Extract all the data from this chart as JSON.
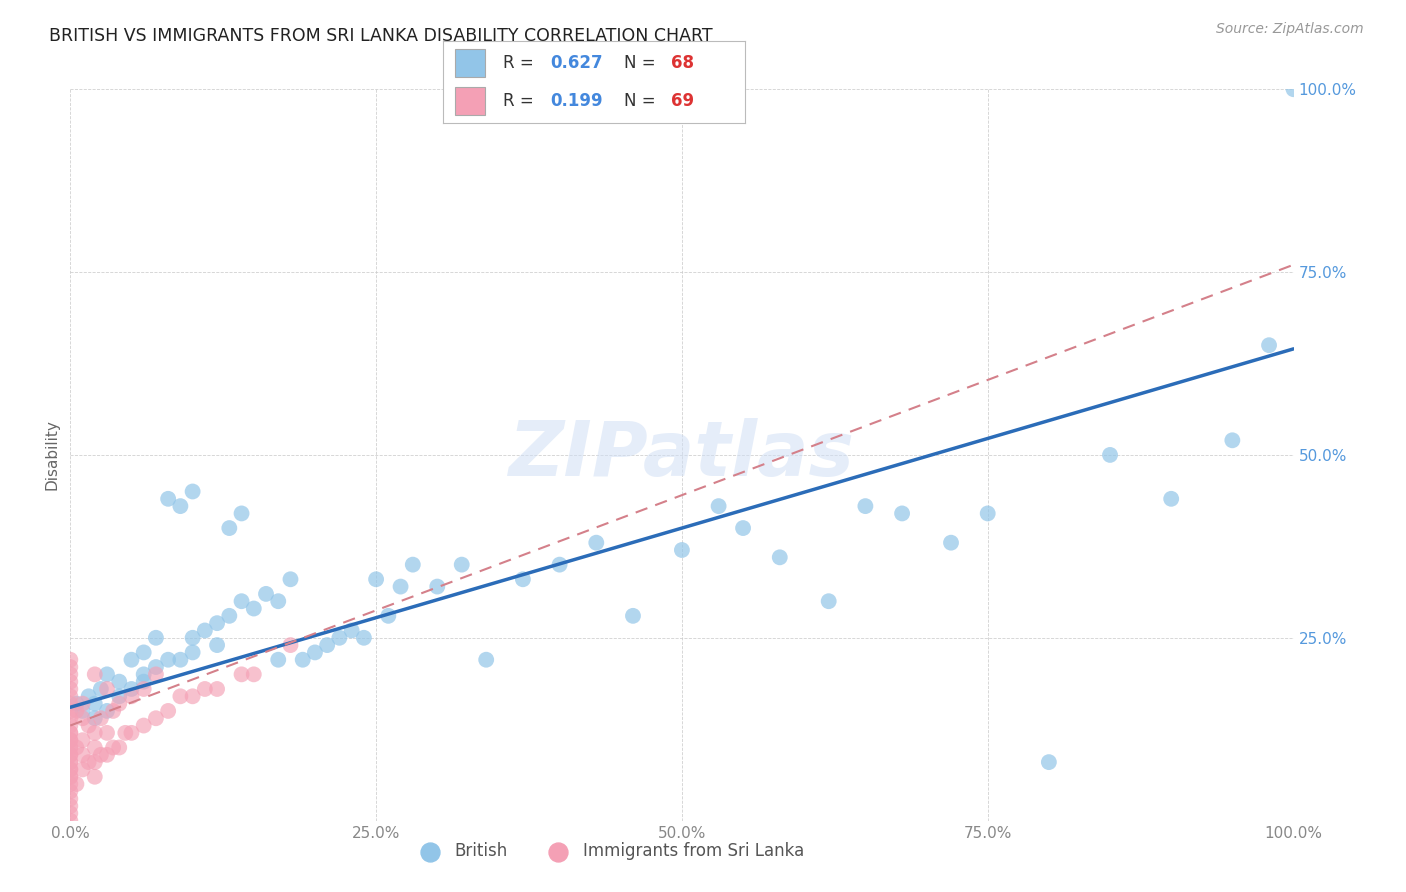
{
  "title": "BRITISH VS IMMIGRANTS FROM SRI LANKA DISABILITY CORRELATION CHART",
  "source": "Source: ZipAtlas.com",
  "ylabel": "Disability",
  "watermark": "ZIPatlas",
  "xlim": [
    0.0,
    1.0
  ],
  "ylim": [
    0.0,
    1.0
  ],
  "british_color": "#92c5e8",
  "immigrants_color": "#f4a0b5",
  "british_line_color": "#2b6cb8",
  "immigrants_line_color": "#d4808a",
  "legend_R_british": "0.627",
  "legend_N_british": "68",
  "legend_R_immigrants": "0.199",
  "legend_N_immigrants": "69",
  "ytick_color": "#5599dd",
  "xtick_color": "#888888",
  "british_x": [
    0.005,
    0.01,
    0.015,
    0.02,
    0.02,
    0.025,
    0.03,
    0.03,
    0.04,
    0.04,
    0.05,
    0.05,
    0.06,
    0.06,
    0.06,
    0.07,
    0.07,
    0.08,
    0.08,
    0.09,
    0.09,
    0.1,
    0.1,
    0.1,
    0.11,
    0.12,
    0.12,
    0.13,
    0.13,
    0.14,
    0.14,
    0.15,
    0.16,
    0.17,
    0.17,
    0.18,
    0.19,
    0.2,
    0.21,
    0.22,
    0.23,
    0.24,
    0.25,
    0.26,
    0.27,
    0.28,
    0.3,
    0.32,
    0.34,
    0.37,
    0.4,
    0.43,
    0.46,
    0.5,
    0.53,
    0.55,
    0.58,
    0.62,
    0.65,
    0.68,
    0.72,
    0.75,
    0.8,
    0.85,
    0.9,
    0.95,
    0.98,
    1.0
  ],
  "british_y": [
    0.16,
    0.15,
    0.17,
    0.16,
    0.14,
    0.18,
    0.15,
    0.2,
    0.17,
    0.19,
    0.18,
    0.22,
    0.2,
    0.19,
    0.23,
    0.21,
    0.25,
    0.22,
    0.44,
    0.43,
    0.22,
    0.23,
    0.45,
    0.25,
    0.26,
    0.24,
    0.27,
    0.28,
    0.4,
    0.42,
    0.3,
    0.29,
    0.31,
    0.3,
    0.22,
    0.33,
    0.22,
    0.23,
    0.24,
    0.25,
    0.26,
    0.25,
    0.33,
    0.28,
    0.32,
    0.35,
    0.32,
    0.35,
    0.22,
    0.33,
    0.35,
    0.38,
    0.28,
    0.37,
    0.43,
    0.4,
    0.36,
    0.3,
    0.43,
    0.42,
    0.38,
    0.42,
    0.08,
    0.5,
    0.44,
    0.52,
    0.65,
    1.0
  ],
  "immigrants_x": [
    0.0,
    0.0,
    0.0,
    0.0,
    0.0,
    0.0,
    0.0,
    0.0,
    0.0,
    0.0,
    0.0,
    0.0,
    0.0,
    0.0,
    0.0,
    0.0,
    0.0,
    0.0,
    0.0,
    0.0,
    0.0,
    0.0,
    0.0,
    0.0,
    0.0,
    0.0,
    0.0,
    0.0,
    0.0,
    0.0,
    0.005,
    0.005,
    0.005,
    0.01,
    0.01,
    0.01,
    0.01,
    0.01,
    0.015,
    0.015,
    0.02,
    0.02,
    0.02,
    0.02,
    0.02,
    0.025,
    0.025,
    0.03,
    0.03,
    0.03,
    0.035,
    0.035,
    0.04,
    0.04,
    0.045,
    0.05,
    0.05,
    0.06,
    0.06,
    0.07,
    0.07,
    0.08,
    0.09,
    0.1,
    0.11,
    0.12,
    0.14,
    0.15,
    0.18
  ],
  "immigrants_y": [
    0.0,
    0.01,
    0.02,
    0.03,
    0.04,
    0.05,
    0.06,
    0.07,
    0.08,
    0.09,
    0.1,
    0.11,
    0.12,
    0.13,
    0.14,
    0.15,
    0.16,
    0.17,
    0.18,
    0.19,
    0.2,
    0.21,
    0.22,
    0.07,
    0.06,
    0.08,
    0.09,
    0.1,
    0.11,
    0.12,
    0.05,
    0.1,
    0.15,
    0.07,
    0.09,
    0.11,
    0.14,
    0.16,
    0.08,
    0.13,
    0.06,
    0.08,
    0.1,
    0.12,
    0.2,
    0.09,
    0.14,
    0.09,
    0.12,
    0.18,
    0.1,
    0.15,
    0.1,
    0.16,
    0.12,
    0.12,
    0.17,
    0.13,
    0.18,
    0.14,
    0.2,
    0.15,
    0.17,
    0.17,
    0.18,
    0.18,
    0.2,
    0.2,
    0.24
  ],
  "british_line_x0": 0.0,
  "british_line_y0": 0.155,
  "british_line_x1": 1.0,
  "british_line_y1": 0.645,
  "immigrants_line_x0": 0.0,
  "immigrants_line_y0": 0.13,
  "immigrants_line_x1": 1.0,
  "immigrants_line_y1": 0.76
}
